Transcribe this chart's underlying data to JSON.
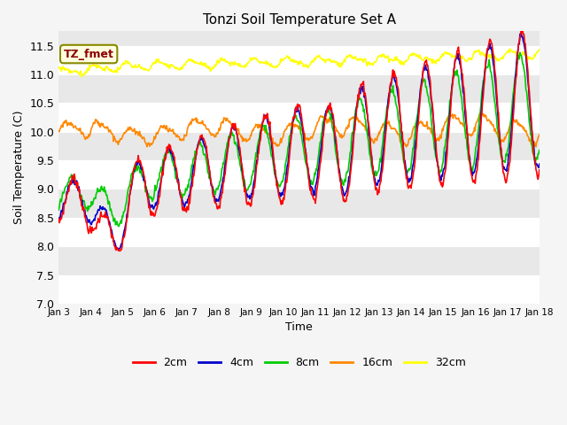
{
  "title": "Tonzi Soil Temperature Set A",
  "xlabel": "Time",
  "ylabel": "Soil Temperature (C)",
  "ylim": [
    7.0,
    11.75
  ],
  "yticks": [
    7.0,
    7.5,
    8.0,
    8.5,
    9.0,
    9.5,
    10.0,
    10.5,
    11.0,
    11.5
  ],
  "annotation_text": "TZ_fmet",
  "series": {
    "2cm": {
      "color": "#ff0000",
      "lw": 1.2
    },
    "4cm": {
      "color": "#0000cc",
      "lw": 1.2
    },
    "8cm": {
      "color": "#00cc00",
      "lw": 1.2
    },
    "16cm": {
      "color": "#ff8800",
      "lw": 1.2
    },
    "32cm": {
      "color": "#ffff00",
      "lw": 1.2
    }
  },
  "xtick_labels": [
    "Jan 3",
    "Jan 4",
    "Jan 5",
    "Jan 6",
    "Jan 7",
    "Jan 8",
    "Jan 9",
    "Jan 10",
    "Jan 11",
    "Jan 12",
    "Jan 13",
    "Jan 14",
    "Jan 15",
    "Jan 16",
    "Jan 17",
    "Jan 18"
  ],
  "n_days": 15,
  "fig_bg": "#f5f5f5",
  "ax_bg": "#e8e8e8",
  "band_color": "#ffffff"
}
